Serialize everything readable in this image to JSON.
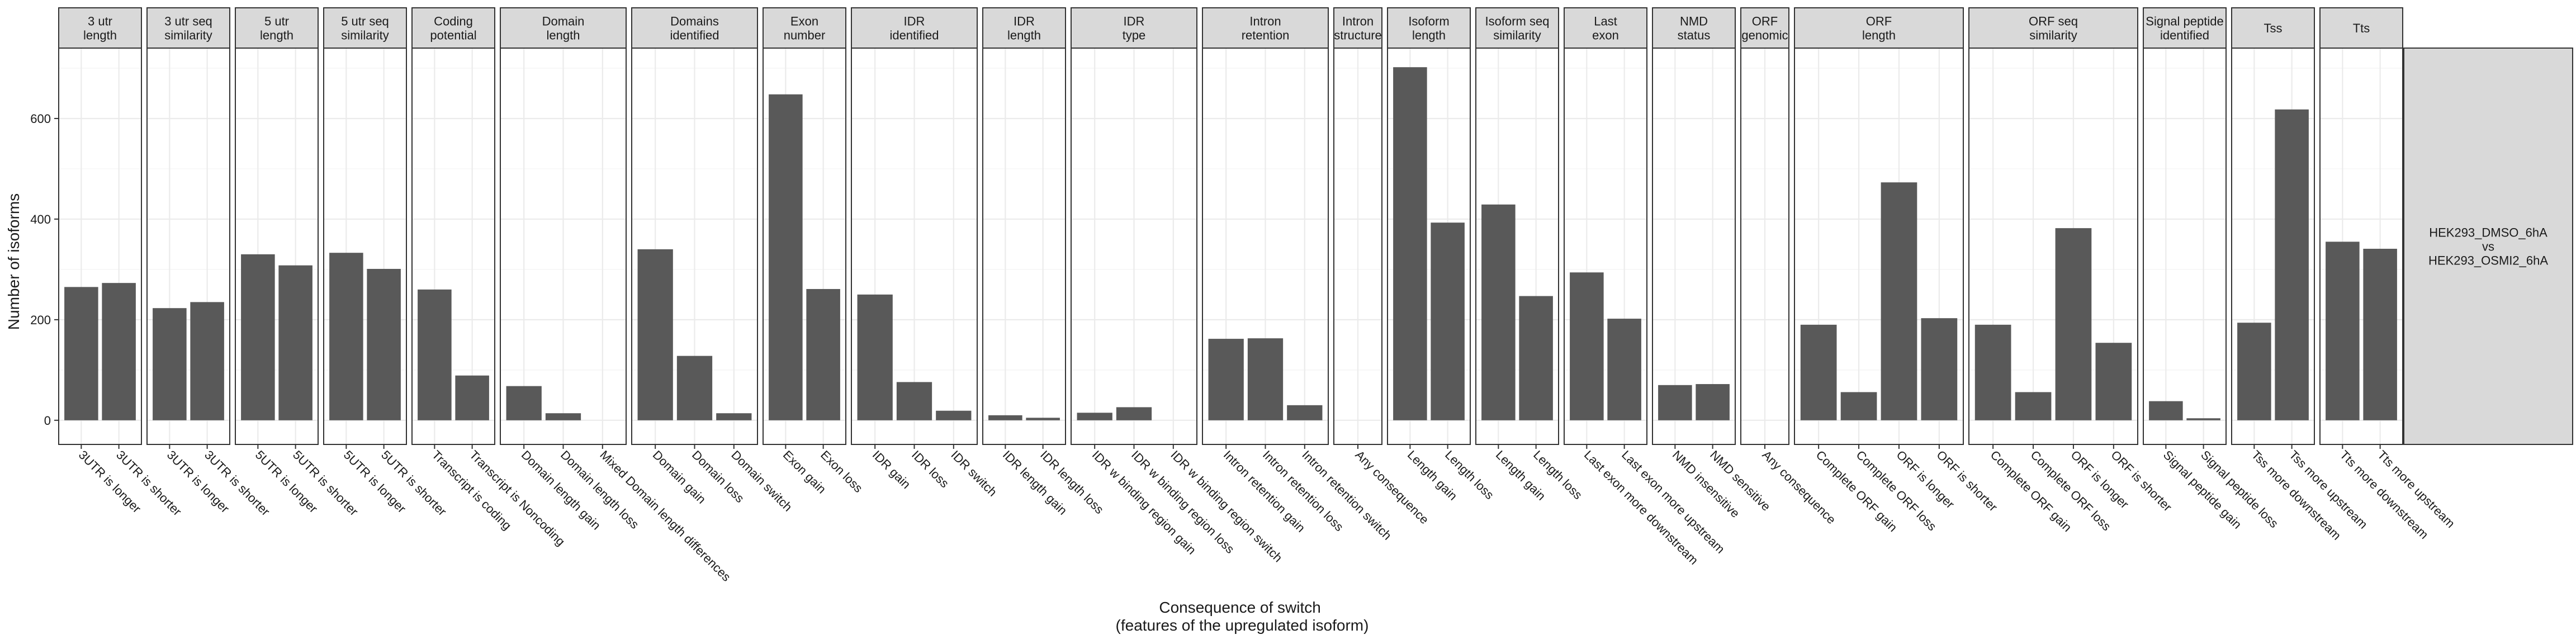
{
  "chart_data": {
    "type": "bar",
    "xlabel": [
      "Consequence of switch",
      "(features of the upregulated isoform)"
    ],
    "ylabel": "Number of isoforms",
    "ylim": [
      -48,
      740
    ],
    "yticks": [
      0,
      200,
      400,
      600
    ],
    "grid": true,
    "bar_color": "#595959",
    "strip_color": "#d9d9d9",
    "row_strip": [
      "HEK293_DMSO_6hA",
      "vs",
      "HEK293_OSMI2_6hA"
    ],
    "facets": [
      {
        "strip": [
          "3 utr",
          "length"
        ],
        "categories": [
          "3UTR is longer",
          "3UTR is shorter"
        ],
        "values": [
          265,
          273
        ]
      },
      {
        "strip": [
          "3 utr seq",
          "similarity"
        ],
        "categories": [
          "3UTR is longer",
          "3UTR is shorter"
        ],
        "values": [
          223,
          235
        ]
      },
      {
        "strip": [
          "5 utr",
          "length"
        ],
        "categories": [
          "5UTR is longer",
          "5UTR is shorter"
        ],
        "values": [
          330,
          308
        ]
      },
      {
        "strip": [
          "5 utr seq",
          "similarity"
        ],
        "categories": [
          "5UTR is longer",
          "5UTR is shorter"
        ],
        "values": [
          333,
          301
        ]
      },
      {
        "strip": [
          "Coding",
          "potential"
        ],
        "categories": [
          "Transcript is coding",
          "Transcript is Noncoding"
        ],
        "values": [
          260,
          89
        ]
      },
      {
        "strip": [
          "Domain",
          "length"
        ],
        "categories": [
          "Domain length gain",
          "Domain length loss",
          "Mixed Domain length differences"
        ],
        "values": [
          68,
          14,
          0
        ]
      },
      {
        "strip": [
          "Domains",
          "identified"
        ],
        "categories": [
          "Domain gain",
          "Domain loss",
          "Domain switch"
        ],
        "values": [
          340,
          128,
          14
        ]
      },
      {
        "strip": [
          "Exon",
          "number"
        ],
        "categories": [
          "Exon gain",
          "Exon loss"
        ],
        "values": [
          648,
          261
        ]
      },
      {
        "strip": [
          "IDR",
          "identified"
        ],
        "categories": [
          "IDR gain",
          "IDR loss",
          "IDR switch"
        ],
        "values": [
          250,
          76,
          19
        ]
      },
      {
        "strip": [
          "IDR",
          "length"
        ],
        "categories": [
          "IDR length gain",
          "IDR length loss"
        ],
        "values": [
          10,
          5
        ]
      },
      {
        "strip": [
          "IDR",
          "type"
        ],
        "categories": [
          "IDR w binding region gain",
          "IDR w binding region loss",
          "IDR w binding region switch"
        ],
        "values": [
          15,
          26,
          0
        ]
      },
      {
        "strip": [
          "Intron",
          "retention"
        ],
        "categories": [
          "Intron retention gain",
          "Intron retention loss",
          "Intron retention switch"
        ],
        "values": [
          162,
          163,
          30
        ]
      },
      {
        "strip": [
          "Intron",
          "structure"
        ],
        "categories": [
          "Any consequence"
        ],
        "values": [
          0
        ]
      },
      {
        "strip": [
          "Isoform",
          "length"
        ],
        "categories": [
          "Length gain",
          "Length loss"
        ],
        "values": [
          702,
          393
        ]
      },
      {
        "strip": [
          "Isoform seq",
          "similarity"
        ],
        "categories": [
          "Length gain",
          "Length loss"
        ],
        "values": [
          429,
          247
        ]
      },
      {
        "strip": [
          "Last",
          "exon"
        ],
        "categories": [
          "Last exon more downstream",
          "Last exon more upstream"
        ],
        "values": [
          294,
          202
        ]
      },
      {
        "strip": [
          "NMD",
          "status"
        ],
        "categories": [
          "NMD insensitive",
          "NMD sensitive"
        ],
        "values": [
          70,
          72
        ]
      },
      {
        "strip": [
          "ORF",
          "genomic"
        ],
        "categories": [
          "Any consequence"
        ],
        "values": [
          0
        ]
      },
      {
        "strip": [
          "ORF",
          "length"
        ],
        "categories": [
          "Complete ORF gain",
          "Complete ORF loss",
          "ORF is longer",
          "ORF is shorter"
        ],
        "values": [
          190,
          56,
          473,
          203
        ]
      },
      {
        "strip": [
          "ORF seq",
          "similarity"
        ],
        "categories": [
          "Complete ORF gain",
          "Complete ORF loss",
          "ORF is longer",
          "ORF is shorter"
        ],
        "values": [
          190,
          56,
          382,
          154
        ]
      },
      {
        "strip": [
          "Signal peptide",
          "identified"
        ],
        "categories": [
          "Signal peptide gain",
          "Signal peptide loss"
        ],
        "values": [
          38,
          4
        ]
      },
      {
        "strip": [
          "Tss"
        ],
        "categories": [
          "Tss more downstream",
          "Tss more upstream"
        ],
        "values": [
          194,
          618
        ]
      },
      {
        "strip": [
          "Tts"
        ],
        "categories": [
          "Tts more downstream",
          "Tts more upstream"
        ],
        "values": [
          355,
          341
        ]
      }
    ]
  }
}
